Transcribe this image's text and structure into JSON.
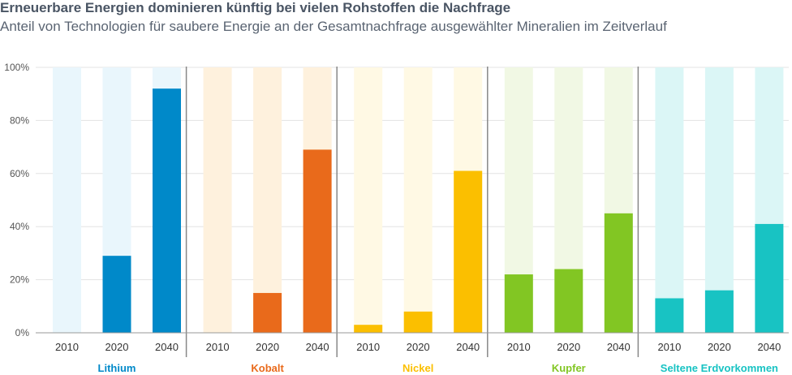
{
  "chart_data": {
    "type": "bar",
    "title": "Erneuerbare Energien dominieren künftig bei vielen Rohstoffen die Nachfrage",
    "subtitle": "Anteil von Technologien für saubere Energie an der Gesamtnachfrage ausgewählter Mineralien im Zeitverlauf",
    "ylim": [
      0,
      100
    ],
    "yticks": [
      "0%",
      "20%",
      "40%",
      "60%",
      "80%",
      "100%"
    ],
    "grid": true,
    "groups": [
      {
        "name": "Lithium",
        "color": "#0089c9",
        "light": "#e9f6fc",
        "categories": [
          "2010",
          "2020",
          "2040"
        ],
        "values": [
          0,
          29,
          92
        ]
      },
      {
        "name": "Kobalt",
        "color": "#e96a1b",
        "light": "#fef1dd",
        "categories": [
          "2010",
          "2020",
          "2040"
        ],
        "values": [
          0,
          15,
          69
        ]
      },
      {
        "name": "Nickel",
        "color": "#fbbf00",
        "light": "#fff9e4",
        "categories": [
          "2010",
          "2020",
          "2040"
        ],
        "values": [
          3,
          8,
          61
        ]
      },
      {
        "name": "Kupfer",
        "color": "#82c623",
        "light": "#f1f8e4",
        "categories": [
          "2010",
          "2020",
          "2040"
        ],
        "values": [
          22,
          24,
          45
        ]
      },
      {
        "name": "Seltene Erdvorkommen",
        "color": "#18c3c3",
        "light": "#dbf6f6",
        "categories": [
          "2010",
          "2020",
          "2040"
        ],
        "values": [
          13,
          16,
          41
        ]
      }
    ]
  }
}
